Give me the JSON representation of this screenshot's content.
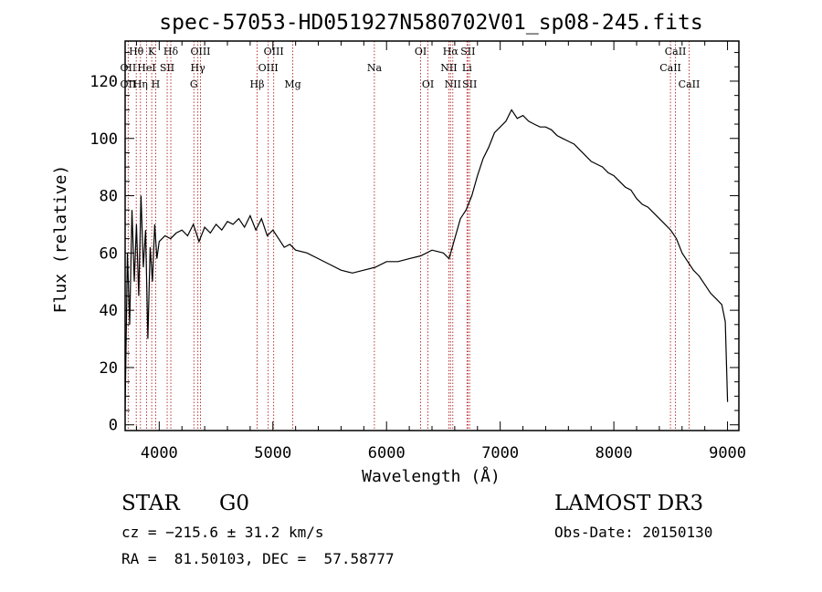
{
  "chart_data": {
    "type": "line",
    "title": "spec-57053-HD051927N580702V01_sp08-245.fits",
    "xlabel": "Wavelength (Å)",
    "ylabel": "Flux (relative)",
    "xlim": [
      3700,
      9100
    ],
    "ylim": [
      -2,
      134
    ],
    "xticks": [
      4000,
      5000,
      6000,
      7000,
      8000,
      9000
    ],
    "yticks": [
      0,
      20,
      40,
      60,
      80,
      100,
      120
    ],
    "grid": false,
    "series": [
      {
        "x": [
          3700,
          3720,
          3740,
          3760,
          3780,
          3800,
          3820,
          3840,
          3860,
          3880,
          3900,
          3920,
          3940,
          3960,
          3980,
          4000,
          4050,
          4100,
          4150,
          4200,
          4250,
          4300,
          4350,
          4400,
          4450,
          4500,
          4550,
          4600,
          4650,
          4700,
          4750,
          4800,
          4850,
          4900,
          4950,
          5000,
          5050,
          5100,
          5150,
          5200,
          5300,
          5400,
          5500,
          5600,
          5700,
          5800,
          5900,
          6000,
          6100,
          6200,
          6300,
          6400,
          6500,
          6550,
          6600,
          6650,
          6700,
          6750,
          6800,
          6850,
          6900,
          6950,
          7000,
          7050,
          7100,
          7150,
          7200,
          7250,
          7300,
          7350,
          7400,
          7450,
          7500,
          7550,
          7600,
          7650,
          7700,
          7750,
          7800,
          7850,
          7900,
          7950,
          8000,
          8050,
          8100,
          8150,
          8200,
          8250,
          8300,
          8350,
          8400,
          8450,
          8500,
          8550,
          8600,
          8650,
          8700,
          8750,
          8800,
          8850,
          8900,
          8950,
          8980,
          9000
        ],
        "y": [
          5,
          60,
          35,
          75,
          50,
          70,
          45,
          80,
          55,
          68,
          30,
          62,
          50,
          70,
          58,
          64,
          66,
          65,
          67,
          68,
          66,
          70,
          64,
          69,
          67,
          70,
          68,
          71,
          70,
          72,
          69,
          73,
          68,
          72,
          66,
          68,
          65,
          62,
          63,
          61,
          60,
          58,
          56,
          54,
          53,
          54,
          55,
          57,
          57,
          58,
          59,
          61,
          60,
          58,
          65,
          72,
          75,
          80,
          87,
          93,
          97,
          102,
          104,
          106,
          110,
          107,
          108,
          106,
          105,
          104,
          104,
          103,
          101,
          100,
          99,
          98,
          96,
          94,
          92,
          91,
          90,
          88,
          87,
          85,
          83,
          82,
          79,
          77,
          76,
          74,
          72,
          70,
          68,
          65,
          60,
          57,
          54,
          52,
          49,
          46,
          44,
          42,
          36,
          8
        ]
      }
    ],
    "lines": [
      {
        "name": "OII",
        "x": 3727,
        "row": 2,
        "side": "r"
      },
      {
        "name": "Hθ",
        "x": 3798,
        "row": 1,
        "side": "c"
      },
      {
        "name": "OII",
        "x": 3727,
        "row": 3,
        "side": "r"
      },
      {
        "name": "K",
        "x": 3934,
        "row": 1,
        "side": "c"
      },
      {
        "name": "Hη",
        "x": 3835,
        "row": 3,
        "side": "c"
      },
      {
        "name": "HeI",
        "x": 3889,
        "row": 2,
        "side": "c"
      },
      {
        "name": "H",
        "x": 3969,
        "row": 3,
        "side": "c"
      },
      {
        "name": "SII",
        "x": 4070,
        "row": 2,
        "side": "c"
      },
      {
        "name": "Hδ",
        "x": 4102,
        "row": 1,
        "side": "c"
      },
      {
        "name": "OIII",
        "x": 4363,
        "row": 1,
        "side": "c"
      },
      {
        "name": "Hγ",
        "x": 4340,
        "row": 2,
        "side": "c"
      },
      {
        "name": "G",
        "x": 4305,
        "row": 3,
        "side": "c"
      },
      {
        "name": "Hβ",
        "x": 4861,
        "row": 3,
        "side": "c"
      },
      {
        "name": "OIII",
        "x": 5007,
        "row": 1,
        "side": "c"
      },
      {
        "name": "OIII",
        "x": 4959,
        "row": 2,
        "side": "c"
      },
      {
        "name": "Mg",
        "x": 5175,
        "row": 3,
        "side": "c"
      },
      {
        "name": "Na",
        "x": 5893,
        "row": 2,
        "side": "c"
      },
      {
        "name": "OI",
        "x": 6300,
        "row": 1,
        "side": "c"
      },
      {
        "name": "OI",
        "x": 6364,
        "row": 3,
        "side": "c"
      },
      {
        "name": "Hα",
        "x": 6563,
        "row": 1,
        "side": "c"
      },
      {
        "name": "SII",
        "x": 6716,
        "row": 1,
        "side": "c"
      },
      {
        "name": "NII",
        "x": 6548,
        "row": 2,
        "side": "c"
      },
      {
        "name": "Li",
        "x": 6708,
        "row": 2,
        "side": "c"
      },
      {
        "name": "NII",
        "x": 6583,
        "row": 3,
        "side": "c"
      },
      {
        "name": "SII",
        "x": 6731,
        "row": 3,
        "side": "c"
      },
      {
        "name": "CaII",
        "x": 8542,
        "row": 1,
        "side": "c"
      },
      {
        "name": "CaII",
        "x": 8498,
        "row": 2,
        "side": "c"
      },
      {
        "name": "CaII",
        "x": 8662,
        "row": 3,
        "side": "c"
      }
    ],
    "line_color": "#b22222"
  },
  "footer": {
    "class_label": "STAR",
    "subclass_label": "G0",
    "redshift": "cz = −215.6 ± 31.2 km/s",
    "coords": "RA =  81.50103, DEC =  57.58777",
    "survey": "LAMOST DR3",
    "obs_date": "Obs-Date: 20150130"
  }
}
